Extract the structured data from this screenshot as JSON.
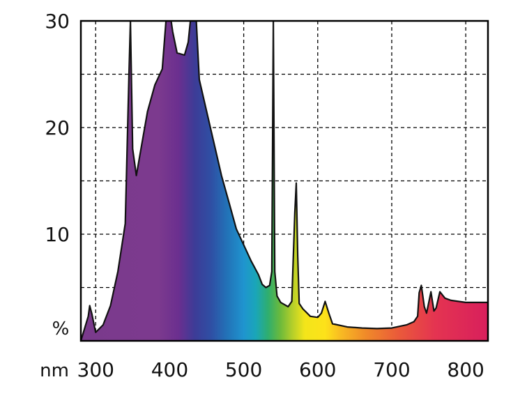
{
  "chart_data": {
    "type": "area",
    "title": "",
    "xlabel": "nm",
    "ylabel": "%",
    "xlim": [
      280,
      830
    ],
    "ylim": [
      0,
      30
    ],
    "x_ticks": [
      300,
      400,
      500,
      600,
      700,
      800
    ],
    "y_ticks": [
      10,
      20,
      30
    ],
    "y_gridlines": [
      5,
      10,
      15,
      20,
      25
    ],
    "grid": true,
    "fill": "visible-spectrum gradient (violet 380 nm to red 780 nm)",
    "series": [
      {
        "x": [
          280,
          290,
          292,
          295,
          300,
          310,
          320,
          330,
          340,
          345,
          347,
          350,
          355,
          360,
          370,
          380,
          390,
          395,
          398,
          402,
          404,
          410,
          420,
          425,
          428,
          431,
          436,
          440,
          450,
          460,
          470,
          480,
          490,
          500,
          510,
          520,
          525,
          530,
          535,
          538,
          540,
          542,
          545,
          550,
          560,
          565,
          569,
          571,
          573,
          575,
          580,
          590,
          600,
          605,
          610,
          615,
          620,
          640,
          660,
          680,
          700,
          720,
          730,
          735,
          737,
          740,
          744,
          747,
          750,
          753,
          757,
          760,
          765,
          772,
          780,
          800,
          830
        ],
        "y": [
          0,
          2.3,
          3.3,
          2.5,
          0.8,
          1.5,
          3.3,
          6.5,
          11,
          25,
          30,
          18,
          15.5,
          17.5,
          21.5,
          24,
          25.5,
          30,
          30,
          30,
          29,
          27,
          26.8,
          28,
          30,
          30,
          30,
          24.5,
          21.5,
          18.5,
          15.5,
          13,
          10.5,
          9,
          7.5,
          6.2,
          5.3,
          5.0,
          5.2,
          6.5,
          30,
          6.5,
          4.2,
          3.6,
          3.2,
          3.7,
          12,
          14.8,
          8,
          3.5,
          3.0,
          2.3,
          2.2,
          2.6,
          3.7,
          2.6,
          1.6,
          1.3,
          1.2,
          1.15,
          1.2,
          1.5,
          1.8,
          2.3,
          4.5,
          5.2,
          3.2,
          2.6,
          3.6,
          4.6,
          2.8,
          3.1,
          4.6,
          4.0,
          3.8,
          3.6,
          3.6
        ]
      }
    ]
  }
}
